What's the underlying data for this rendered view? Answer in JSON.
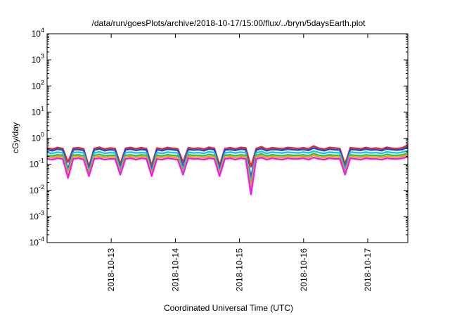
{
  "chart_data": {
    "type": "line",
    "title": "/data/run/goesPlots/archive/2018-10-17/15:00/flux/../bryn/5daysEarth.plot",
    "xlabel": "Coordinated Universal Time (UTC)",
    "ylabel": "cGy/day",
    "yscale": "log",
    "grid": false,
    "legend": "none",
    "xlim": [
      "2018-10-12T00:00",
      "2018-10-17T15:00"
    ],
    "ylim": [
      0.0001,
      10000
    ],
    "x_ticks": [
      "2018-10-13",
      "2018-10-14",
      "2018-10-15",
      "2018-10-16",
      "2018-10-17"
    ],
    "y_ticks": [
      {
        "base": "10",
        "exp": "-4"
      },
      {
        "base": "10",
        "exp": "-3"
      },
      {
        "base": "10",
        "exp": "-2"
      },
      {
        "base": "10",
        "exp": "-1"
      },
      {
        "base": "10",
        "exp": "0"
      },
      {
        "base": "10",
        "exp": "1"
      },
      {
        "base": "10",
        "exp": "2"
      },
      {
        "base": "10",
        "exp": "3"
      },
      {
        "base": "10",
        "exp": "4"
      }
    ],
    "series": [
      {
        "color": "#e52a2a",
        "values": [
          0.42,
          0.38,
          0.44,
          0.4,
          0.12,
          0.41,
          0.43,
          0.39,
          0.08,
          0.4,
          0.45,
          0.38,
          0.42,
          0.4,
          0.1,
          0.41,
          0.44,
          0.39,
          0.43,
          0.4,
          0.09,
          0.42,
          0.38,
          0.44,
          0.41,
          0.39,
          0.12,
          0.43,
          0.4,
          0.42,
          0.38,
          0.45,
          0.41,
          0.09,
          0.4,
          0.43,
          0.39,
          0.44,
          0.42,
          0.08,
          0.4,
          0.47,
          0.38,
          0.43,
          0.41,
          0.39,
          0.44,
          0.42,
          0.4,
          0.43,
          0.39,
          0.5,
          0.41,
          0.38,
          0.44,
          0.42,
          0.4,
          0.1,
          0.43,
          0.41,
          0.39,
          0.44,
          0.4,
          0.42,
          0.38,
          0.45,
          0.41,
          0.4,
          0.43,
          0.55
        ]
      },
      {
        "color": "#1f4ad6",
        "values": [
          0.36,
          0.33,
          0.38,
          0.35,
          0.06,
          0.36,
          0.37,
          0.34,
          0.06,
          0.35,
          0.39,
          0.33,
          0.36,
          0.35,
          0.07,
          0.36,
          0.38,
          0.34,
          0.37,
          0.35,
          0.06,
          0.36,
          0.33,
          0.38,
          0.36,
          0.34,
          0.08,
          0.37,
          0.35,
          0.36,
          0.33,
          0.39,
          0.36,
          0.06,
          0.35,
          0.37,
          0.34,
          0.38,
          0.36,
          0.03,
          0.35,
          0.4,
          0.33,
          0.37,
          0.36,
          0.34,
          0.38,
          0.36,
          0.35,
          0.37,
          0.34,
          0.42,
          0.36,
          0.33,
          0.38,
          0.36,
          0.35,
          0.07,
          0.37,
          0.36,
          0.34,
          0.38,
          0.35,
          0.36,
          0.33,
          0.39,
          0.36,
          0.35,
          0.37,
          0.46
        ]
      },
      {
        "color": "#22c4e6",
        "values": [
          0.28,
          0.26,
          0.29,
          0.27,
          0.05,
          0.28,
          0.29,
          0.27,
          0.05,
          0.27,
          0.3,
          0.26,
          0.28,
          0.27,
          0.06,
          0.28,
          0.29,
          0.27,
          0.28,
          0.27,
          0.05,
          0.28,
          0.26,
          0.29,
          0.28,
          0.27,
          0.06,
          0.29,
          0.27,
          0.28,
          0.26,
          0.3,
          0.28,
          0.05,
          0.27,
          0.29,
          0.27,
          0.29,
          0.28,
          0.02,
          0.27,
          0.31,
          0.26,
          0.29,
          0.28,
          0.27,
          0.29,
          0.28,
          0.27,
          0.29,
          0.27,
          0.32,
          0.28,
          0.26,
          0.29,
          0.28,
          0.27,
          0.06,
          0.29,
          0.28,
          0.27,
          0.29,
          0.27,
          0.28,
          0.26,
          0.3,
          0.28,
          0.27,
          0.29,
          0.34
        ]
      },
      {
        "color": "#2fc24a",
        "values": [
          0.22,
          0.21,
          0.23,
          0.22,
          0.045,
          0.22,
          0.23,
          0.21,
          0.045,
          0.22,
          0.24,
          0.21,
          0.22,
          0.22,
          0.05,
          0.22,
          0.23,
          0.21,
          0.23,
          0.22,
          0.045,
          0.22,
          0.21,
          0.23,
          0.22,
          0.21,
          0.05,
          0.23,
          0.22,
          0.22,
          0.21,
          0.24,
          0.22,
          0.045,
          0.22,
          0.23,
          0.21,
          0.23,
          0.22,
          0.015,
          0.22,
          0.25,
          0.21,
          0.23,
          0.22,
          0.21,
          0.23,
          0.22,
          0.22,
          0.23,
          0.21,
          0.26,
          0.22,
          0.21,
          0.23,
          0.22,
          0.22,
          0.05,
          0.23,
          0.22,
          0.21,
          0.23,
          0.22,
          0.22,
          0.21,
          0.24,
          0.22,
          0.22,
          0.23,
          0.27
        ]
      },
      {
        "color": "#f7a21b",
        "values": [
          0.19,
          0.18,
          0.2,
          0.19,
          0.04,
          0.19,
          0.2,
          0.18,
          0.04,
          0.19,
          0.2,
          0.18,
          0.19,
          0.19,
          0.045,
          0.19,
          0.2,
          0.18,
          0.2,
          0.19,
          0.04,
          0.19,
          0.18,
          0.2,
          0.19,
          0.18,
          0.045,
          0.2,
          0.19,
          0.19,
          0.18,
          0.2,
          0.19,
          0.04,
          0.19,
          0.2,
          0.18,
          0.2,
          0.19,
          0.012,
          0.19,
          0.21,
          0.18,
          0.2,
          0.19,
          0.18,
          0.2,
          0.19,
          0.19,
          0.2,
          0.18,
          0.22,
          0.19,
          0.18,
          0.2,
          0.19,
          0.19,
          0.045,
          0.2,
          0.19,
          0.18,
          0.2,
          0.19,
          0.19,
          0.18,
          0.2,
          0.19,
          0.19,
          0.2,
          0.23
        ]
      },
      {
        "color": "#ee1fe4",
        "values": [
          0.16,
          0.15,
          0.17,
          0.16,
          0.03,
          0.16,
          0.17,
          0.15,
          0.035,
          0.16,
          0.17,
          0.15,
          0.16,
          0.16,
          0.04,
          0.16,
          0.17,
          0.15,
          0.17,
          0.16,
          0.035,
          0.16,
          0.15,
          0.17,
          0.16,
          0.15,
          0.04,
          0.17,
          0.16,
          0.16,
          0.15,
          0.17,
          0.16,
          0.035,
          0.16,
          0.17,
          0.15,
          0.17,
          0.16,
          0.007,
          0.16,
          0.18,
          0.15,
          0.17,
          0.16,
          0.15,
          0.17,
          0.16,
          0.16,
          0.17,
          0.15,
          0.18,
          0.16,
          0.15,
          0.17,
          0.16,
          0.16,
          0.04,
          0.17,
          0.16,
          0.15,
          0.17,
          0.16,
          0.16,
          0.15,
          0.17,
          0.16,
          0.16,
          0.17,
          0.19
        ]
      }
    ]
  }
}
